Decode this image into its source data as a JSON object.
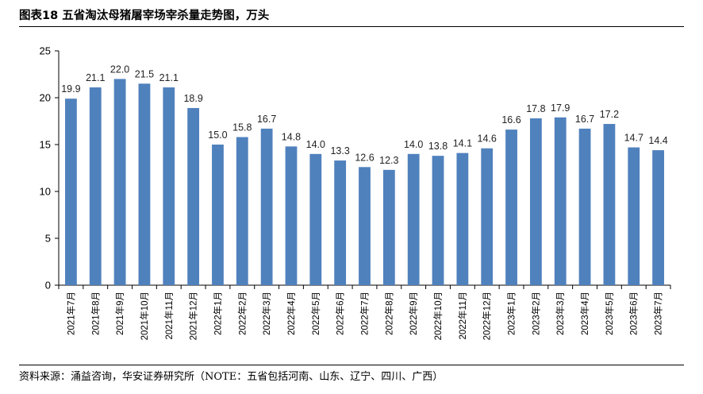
{
  "header": {
    "title": "图表18 五省淘汰母猪屠宰场宰杀量走势图，万头"
  },
  "footer": {
    "source": "资料来源：涌益咨询，华安证券研究所（NOTE：五省包括河南、山东、辽宁、四川、广西）"
  },
  "chart_data": {
    "type": "bar",
    "title": "图表18 五省淘汰母猪屠宰场宰杀量走势图，万头",
    "xlabel": "",
    "ylabel": "",
    "ylim": [
      0,
      25
    ],
    "yticks": [
      0,
      5,
      10,
      15,
      20,
      25
    ],
    "grid": false,
    "legend": "none",
    "bar_color": "#4f81bd",
    "categories": [
      "2021年7月",
      "2021年8月",
      "2021年9月",
      "2021年10月",
      "2021年11月",
      "2021年12月",
      "2022年1月",
      "2022年2月",
      "2022年3月",
      "2022年4月",
      "2022年5月",
      "2022年6月",
      "2022年7月",
      "2022年8月",
      "2022年9月",
      "2022年10月",
      "2022年11月",
      "2022年12月",
      "2023年1月",
      "2023年2月",
      "2023年3月",
      "2023年4月",
      "2023年5月",
      "2023年6月",
      "2023年7月"
    ],
    "values": [
      19.9,
      21.1,
      22.0,
      21.5,
      21.1,
      18.9,
      15.0,
      15.8,
      16.7,
      14.8,
      14.0,
      13.3,
      12.6,
      12.3,
      14.0,
      13.8,
      14.1,
      14.6,
      16.6,
      17.8,
      17.9,
      16.7,
      17.2,
      14.7,
      14.4
    ],
    "labels": [
      "19.9",
      "21.1",
      "22.0",
      "21.5",
      "21.1",
      "18.9",
      "15.0",
      "15.8",
      "16.7",
      "14.8",
      "14.0",
      "13.3",
      "12.6",
      "12.3",
      "14.0",
      "13.8",
      "14.1",
      "14.6",
      "16.6",
      "17.8",
      "17.9",
      "16.7",
      "17.2",
      "14.7",
      "14.4"
    ]
  }
}
